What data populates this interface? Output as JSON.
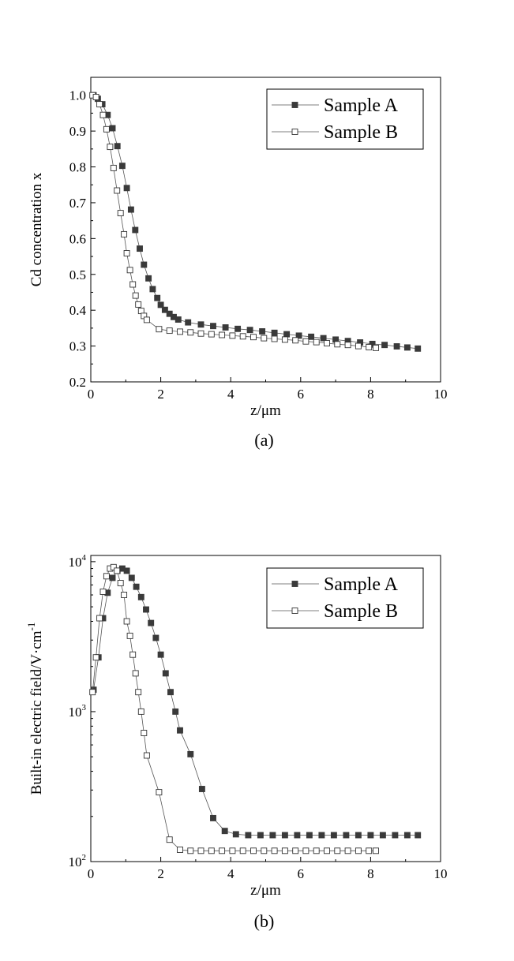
{
  "chart_data": [
    {
      "type": "line",
      "panel_label": "(a)",
      "xlabel": "z/μm",
      "ylabel": "Cd concentration x",
      "xlim": [
        0,
        10
      ],
      "ylim": [
        0.2,
        1.05
      ],
      "x_ticks": [
        0,
        2,
        4,
        6,
        8,
        10
      ],
      "y_ticks": [
        0.2,
        0.3,
        0.4,
        0.5,
        0.6,
        0.7,
        0.8,
        0.9,
        1.0
      ],
      "x_tick_labels": [
        "0",
        "2",
        "4",
        "6",
        "8",
        "10"
      ],
      "y_tick_labels": [
        "0.2",
        "0.3",
        "0.4",
        "0.5",
        "0.6",
        "0.7",
        "0.8",
        "0.9",
        "1.0"
      ],
      "legend_position": "top-right",
      "series": [
        {
          "name": "Sample A",
          "marker": "filled-square",
          "x": [
            0.08,
            0.2,
            0.33,
            0.48,
            0.62,
            0.76,
            0.9,
            1.03,
            1.15,
            1.27,
            1.4,
            1.52,
            1.65,
            1.77,
            1.9,
            2.0,
            2.12,
            2.25,
            2.37,
            2.5,
            2.78,
            3.15,
            3.5,
            3.85,
            4.2,
            4.55,
            4.9,
            5.25,
            5.6,
            5.95,
            6.3,
            6.65,
            7.0,
            7.35,
            7.7,
            8.05,
            8.4,
            8.75,
            9.05,
            9.35
          ],
          "y": [
            1.0,
            0.99,
            0.975,
            0.945,
            0.908,
            0.858,
            0.803,
            0.741,
            0.681,
            0.624,
            0.572,
            0.527,
            0.489,
            0.459,
            0.434,
            0.415,
            0.401,
            0.39,
            0.381,
            0.374,
            0.366,
            0.36,
            0.356,
            0.352,
            0.348,
            0.345,
            0.341,
            0.337,
            0.333,
            0.329,
            0.326,
            0.322,
            0.318,
            0.314,
            0.31,
            0.306,
            0.303,
            0.299,
            0.296,
            0.293
          ]
        },
        {
          "name": "Sample B",
          "marker": "open-square",
          "x": [
            0.05,
            0.15,
            0.25,
            0.35,
            0.45,
            0.55,
            0.65,
            0.75,
            0.85,
            0.95,
            1.03,
            1.12,
            1.2,
            1.28,
            1.36,
            1.44,
            1.52,
            1.6,
            1.95,
            2.25,
            2.55,
            2.85,
            3.15,
            3.45,
            3.75,
            4.05,
            4.35,
            4.65,
            4.95,
            5.25,
            5.55,
            5.85,
            6.15,
            6.45,
            6.75,
            7.05,
            7.35,
            7.65,
            7.95,
            8.15
          ],
          "y": [
            1.0,
            0.995,
            0.975,
            0.945,
            0.905,
            0.856,
            0.797,
            0.734,
            0.671,
            0.612,
            0.559,
            0.512,
            0.472,
            0.441,
            0.416,
            0.398,
            0.384,
            0.373,
            0.347,
            0.343,
            0.34,
            0.338,
            0.335,
            0.333,
            0.331,
            0.329,
            0.327,
            0.325,
            0.322,
            0.32,
            0.318,
            0.316,
            0.313,
            0.311,
            0.308,
            0.305,
            0.303,
            0.3,
            0.297,
            0.295
          ]
        }
      ]
    },
    {
      "type": "line",
      "panel_label": "(b)",
      "xlabel": "z/μm",
      "ylabel": "Built-in electric field/V·cm",
      "ylabel_superscript": "-1",
      "y_scale": "log",
      "xlim": [
        0,
        10
      ],
      "ylim": [
        100,
        11000
      ],
      "x_ticks": [
        0,
        2,
        4,
        6,
        8,
        10
      ],
      "y_ticks": [
        100,
        1000,
        10000
      ],
      "x_tick_labels": [
        "0",
        "2",
        "4",
        "6",
        "8",
        "10"
      ],
      "y_tick_labels": [
        [
          "10",
          "2"
        ],
        [
          "10",
          "3"
        ],
        [
          "10",
          "4"
        ]
      ],
      "legend_position": "top-right",
      "series": [
        {
          "name": "Sample A",
          "marker": "filled-square",
          "x": [
            0.08,
            0.22,
            0.35,
            0.48,
            0.62,
            0.76,
            0.9,
            1.03,
            1.17,
            1.3,
            1.44,
            1.58,
            1.72,
            1.86,
            2.0,
            2.14,
            2.28,
            2.42,
            2.55,
            2.85,
            3.18,
            3.5,
            3.83,
            4.15,
            4.5,
            4.85,
            5.2,
            5.55,
            5.9,
            6.25,
            6.6,
            6.95,
            7.3,
            7.65,
            8.0,
            8.35,
            8.7,
            9.05,
            9.35
          ],
          "y": [
            1400,
            2300,
            4200,
            6200,
            7800,
            8700,
            9000,
            8700,
            7800,
            6800,
            5800,
            4800,
            3900,
            3100,
            2400,
            1800,
            1350,
            1000,
            750,
            520,
            305,
            195,
            160,
            152,
            150,
            150,
            150,
            150,
            150,
            150,
            150,
            150,
            150,
            150,
            150,
            150,
            150,
            150,
            150
          ]
        },
        {
          "name": "Sample B",
          "marker": "open-square",
          "x": [
            0.05,
            0.15,
            0.25,
            0.35,
            0.45,
            0.55,
            0.65,
            0.75,
            0.85,
            0.95,
            1.03,
            1.12,
            1.2,
            1.28,
            1.36,
            1.44,
            1.52,
            1.6,
            1.95,
            2.25,
            2.55,
            2.85,
            3.15,
            3.45,
            3.75,
            4.05,
            4.35,
            4.65,
            4.95,
            5.25,
            5.55,
            5.85,
            6.15,
            6.45,
            6.75,
            7.05,
            7.35,
            7.65,
            7.95,
            8.15
          ],
          "y": [
            1350,
            2300,
            4200,
            6300,
            8000,
            9000,
            9200,
            8700,
            7200,
            6000,
            4000,
            3200,
            2400,
            1800,
            1350,
            1000,
            720,
            510,
            290,
            140,
            120,
            118,
            118,
            118,
            118,
            118,
            118,
            118,
            118,
            118,
            118,
            118,
            118,
            118,
            118,
            118,
            118,
            118,
            118,
            118
          ]
        }
      ]
    }
  ]
}
